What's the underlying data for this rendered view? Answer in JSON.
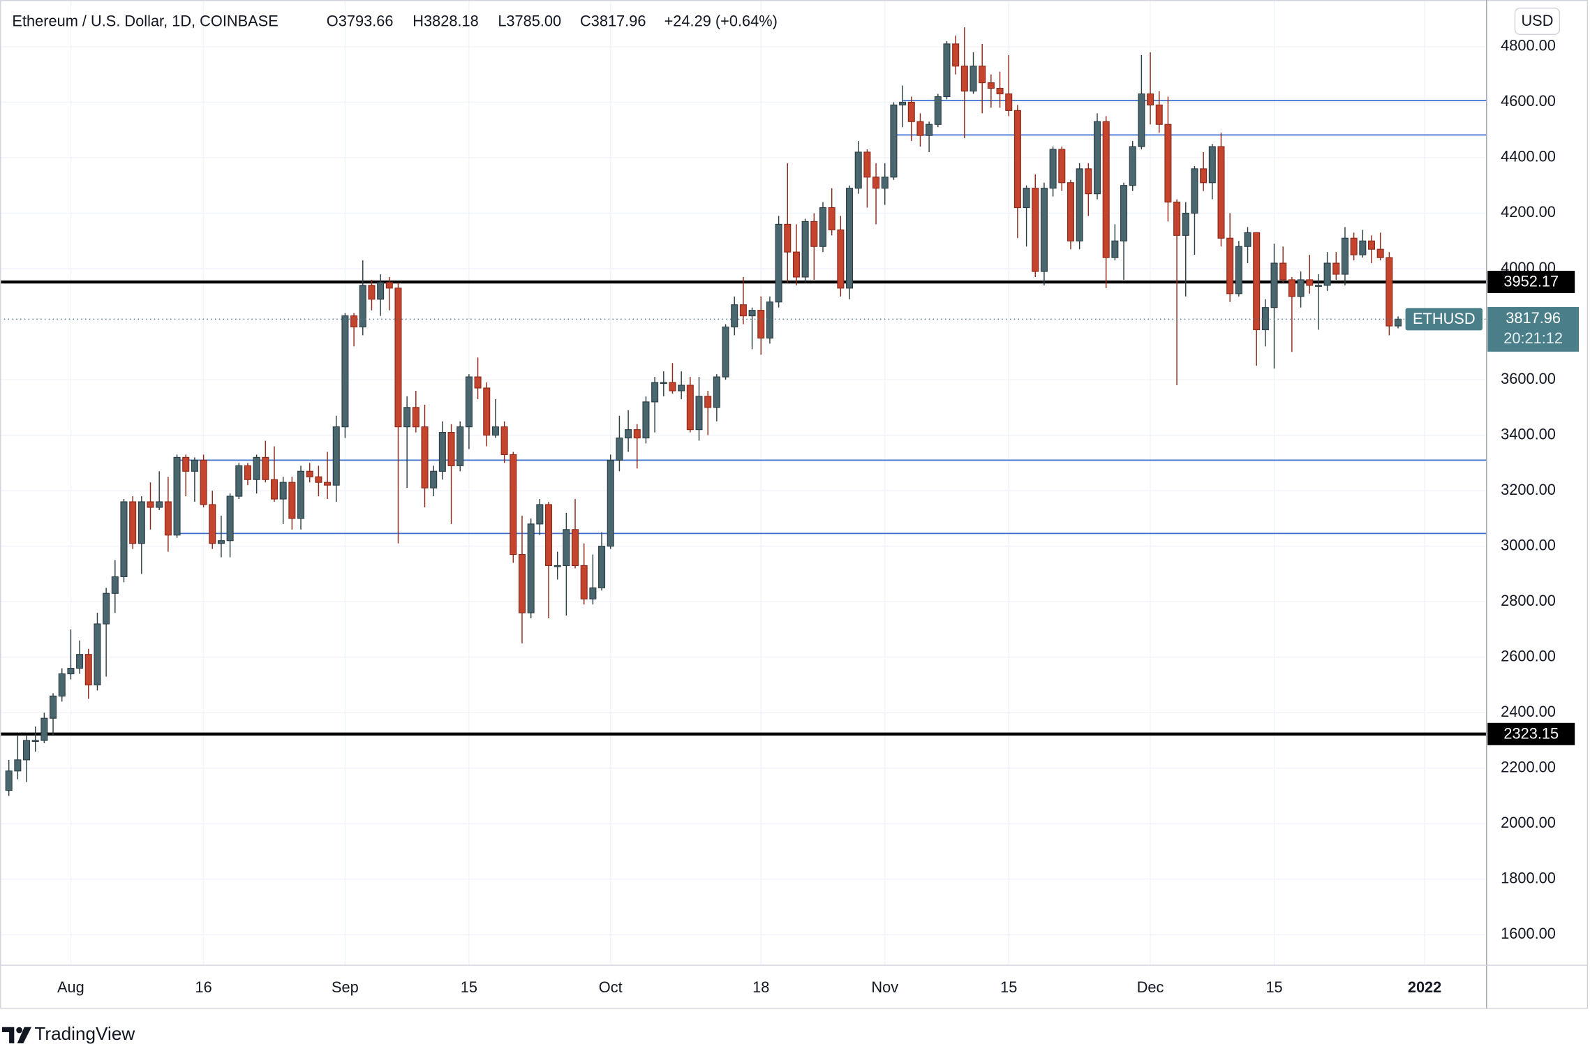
{
  "chart_data": {
    "type": "candlestick",
    "title": "Ethereum / U.S. Dollar, 1D, COINBASE",
    "header_labels": {
      "open": "O3793.66",
      "high": "H3828.18",
      "low": "L3785.00",
      "close": "C3817.96",
      "change": "+24.29 (+0.64%)"
    },
    "currency": "USD",
    "symbol": "ETHUSD",
    "countdown": "20:21:12",
    "brand": "TradingView",
    "up_color": "#4a6770",
    "down_color": "#c4442e",
    "grid": true,
    "ylim": [
      1490,
      4939
    ],
    "yticks": [
      {
        "value": 1600,
        "label": "1600.00"
      },
      {
        "value": 1800,
        "label": "1800.00"
      },
      {
        "value": 2000,
        "label": "2000.00"
      },
      {
        "value": 2200,
        "label": "2200.00"
      },
      {
        "value": 2400,
        "label": "2400.00"
      },
      {
        "value": 2600,
        "label": "2600.00"
      },
      {
        "value": 2800,
        "label": "2800.00"
      },
      {
        "value": 3000,
        "label": "3000.00"
      },
      {
        "value": 3200,
        "label": "3200.00"
      },
      {
        "value": 3400,
        "label": "3400.00"
      },
      {
        "value": 3600,
        "label": "3600.00"
      },
      {
        "value": 4000,
        "label": "4000.00"
      },
      {
        "value": 4200,
        "label": "4200.00"
      },
      {
        "value": 4400,
        "label": "4400.00"
      },
      {
        "value": 4600,
        "label": "4600.00"
      },
      {
        "value": 4800,
        "label": "4800.00"
      }
    ],
    "xlim": [
      "2021-07-24",
      "2022-01-08"
    ],
    "xticks": [
      {
        "value": "2021-08-01",
        "label": "Aug"
      },
      {
        "value": "2021-08-16",
        "label": "16"
      },
      {
        "value": "2021-09-01",
        "label": "Sep"
      },
      {
        "value": "2021-09-15",
        "label": "15"
      },
      {
        "value": "2021-10-01",
        "label": "Oct"
      },
      {
        "value": "2021-10-18",
        "label": "18"
      },
      {
        "value": "2021-11-01",
        "label": "Nov"
      },
      {
        "value": "2021-11-15",
        "label": "15"
      },
      {
        "value": "2021-12-01",
        "label": "Dec"
      },
      {
        "value": "2021-12-15",
        "label": "15"
      },
      {
        "value": "2022-01-01",
        "label": "2022"
      }
    ],
    "levels": [
      {
        "value": 3952.17,
        "color": "#000000"
      },
      {
        "value": 2323.15,
        "color": "#000000"
      }
    ],
    "lines": [
      {
        "value": 4606,
        "start": "2021-11-03",
        "color": "#3d6fd1"
      },
      {
        "value": 4482,
        "start": "2021-11-02",
        "color": "#3d6fd1"
      },
      {
        "value": 3310,
        "start": "2021-08-13",
        "color": "#3d6fd1"
      },
      {
        "value": 3046,
        "start": "2021-08-13",
        "color": "#3d6fd1"
      }
    ],
    "x": [
      "2021-07-25",
      "2021-07-26",
      "2021-07-27",
      "2021-07-28",
      "2021-07-29",
      "2021-07-30",
      "2021-07-31",
      "2021-08-01",
      "2021-08-02",
      "2021-08-03",
      "2021-08-04",
      "2021-08-05",
      "2021-08-06",
      "2021-08-07",
      "2021-08-08",
      "2021-08-09",
      "2021-08-10",
      "2021-08-11",
      "2021-08-12",
      "2021-08-13",
      "2021-08-14",
      "2021-08-15",
      "2021-08-16",
      "2021-08-17",
      "2021-08-18",
      "2021-08-19",
      "2021-08-20",
      "2021-08-21",
      "2021-08-22",
      "2021-08-23",
      "2021-08-24",
      "2021-08-25",
      "2021-08-26",
      "2021-08-27",
      "2021-08-28",
      "2021-08-29",
      "2021-08-30",
      "2021-08-31",
      "2021-09-01",
      "2021-09-02",
      "2021-09-03",
      "2021-09-04",
      "2021-09-05",
      "2021-09-06",
      "2021-09-07",
      "2021-09-08",
      "2021-09-09",
      "2021-09-10",
      "2021-09-11",
      "2021-09-12",
      "2021-09-13",
      "2021-09-14",
      "2021-09-15",
      "2021-09-16",
      "2021-09-17",
      "2021-09-18",
      "2021-09-19",
      "2021-09-20",
      "2021-09-21",
      "2021-09-22",
      "2021-09-23",
      "2021-09-24",
      "2021-09-25",
      "2021-09-26",
      "2021-09-27",
      "2021-09-28",
      "2021-09-29",
      "2021-09-30",
      "2021-10-01",
      "2021-10-02",
      "2021-10-03",
      "2021-10-04",
      "2021-10-05",
      "2021-10-06",
      "2021-10-07",
      "2021-10-08",
      "2021-10-09",
      "2021-10-10",
      "2021-10-11",
      "2021-10-12",
      "2021-10-13",
      "2021-10-14",
      "2021-10-15",
      "2021-10-16",
      "2021-10-17",
      "2021-10-18",
      "2021-10-19",
      "2021-10-20",
      "2021-10-21",
      "2021-10-22",
      "2021-10-23",
      "2021-10-24",
      "2021-10-25",
      "2021-10-26",
      "2021-10-27",
      "2021-10-28",
      "2021-10-29",
      "2021-10-30",
      "2021-10-31",
      "2021-11-01",
      "2021-11-02",
      "2021-11-03",
      "2021-11-04",
      "2021-11-05",
      "2021-11-06",
      "2021-11-07",
      "2021-11-08",
      "2021-11-09",
      "2021-11-10",
      "2021-11-11",
      "2021-11-12",
      "2021-11-13",
      "2021-11-14",
      "2021-11-15",
      "2021-11-16",
      "2021-11-17",
      "2021-11-18",
      "2021-11-19",
      "2021-11-20",
      "2021-11-21",
      "2021-11-22",
      "2021-11-23",
      "2021-11-24",
      "2021-11-25",
      "2021-11-26",
      "2021-11-27",
      "2021-11-28",
      "2021-11-29",
      "2021-11-30",
      "2021-12-01",
      "2021-12-02",
      "2021-12-03",
      "2021-12-04",
      "2021-12-05",
      "2021-12-06",
      "2021-12-07",
      "2021-12-08",
      "2021-12-09",
      "2021-12-10",
      "2021-12-11",
      "2021-12-12",
      "2021-12-13",
      "2021-12-14",
      "2021-12-15",
      "2021-12-16",
      "2021-12-17",
      "2021-12-18",
      "2021-12-19",
      "2021-12-20",
      "2021-12-21",
      "2021-12-22",
      "2021-12-23",
      "2021-12-24",
      "2021-12-25",
      "2021-12-26",
      "2021-12-27",
      "2021-12-28",
      "2021-12-29"
    ],
    "open": [
      2120,
      2190,
      2230,
      2300,
      2300,
      2380,
      2460,
      2540,
      2560,
      2610,
      2500,
      2720,
      2830,
      2890,
      3160,
      3010,
      3160,
      3140,
      3160,
      3040,
      3320,
      3270,
      3310,
      3150,
      3010,
      3020,
      3180,
      3290,
      3240,
      3320,
      3240,
      3170,
      3230,
      3100,
      3270,
      3250,
      3230,
      3220,
      3430,
      3830,
      3790,
      3940,
      3890,
      3950,
      3930,
      3430,
      3500,
      3430,
      3210,
      3270,
      3410,
      3290,
      3430,
      3610,
      3570,
      3400,
      3430,
      3330,
      2970,
      2760,
      3080,
      3150,
      2930,
      2930,
      3060,
      2930,
      2810,
      2850,
      3000,
      3310,
      3390,
      3420,
      3390,
      3520,
      3590,
      3590,
      3560,
      3580,
      3420,
      3540,
      3500,
      3610,
      3790,
      3870,
      3830,
      3850,
      3750,
      3880,
      4160,
      4060,
      3970,
      4170,
      4080,
      4220,
      4140,
      3930,
      4290,
      4420,
      4330,
      4290,
      4330,
      4590,
      4600,
      4530,
      4480,
      4520,
      4620,
      4810,
      4730,
      4640,
      4730,
      4670,
      4650,
      4630,
      4570,
      4220,
      4290,
      3990,
      4290,
      4430,
      4310,
      4100,
      4360,
      4270,
      4530,
      4040,
      4100,
      4300,
      4440,
      4630,
      4590,
      4520,
      4240,
      4120,
      4200,
      4360,
      4310,
      4440,
      4110,
      3910,
      4080,
      4130,
      3780,
      3860,
      4020,
      3960,
      3900,
      3960,
      3940,
      3940,
      4020,
      3980,
      4110,
      4050,
      4100,
      4070,
      4040,
      3793.66
    ],
    "high": [
      2230,
      2320,
      2320,
      2350,
      2400,
      2470,
      2560,
      2700,
      2660,
      2630,
      2760,
      2850,
      2950,
      3170,
      3180,
      3180,
      3230,
      3270,
      3250,
      3330,
      3330,
      3320,
      3330,
      3200,
      3110,
      3190,
      3300,
      3300,
      3330,
      3380,
      3360,
      3250,
      3250,
      3290,
      3300,
      3290,
      3340,
      3470,
      3840,
      3840,
      4030,
      3960,
      3980,
      3970,
      3950,
      3540,
      3560,
      3510,
      3290,
      3450,
      3440,
      3450,
      3620,
      3680,
      3590,
      3530,
      3450,
      3340,
      3110,
      3100,
      3170,
      3160,
      2980,
      3120,
      3170,
      3010,
      2970,
      3050,
      3330,
      3470,
      3490,
      3440,
      3540,
      3610,
      3630,
      3660,
      3630,
      3610,
      3610,
      3560,
      3620,
      3800,
      3900,
      3970,
      3860,
      3900,
      3900,
      4190,
      4380,
      4160,
      4180,
      4200,
      4240,
      4290,
      4190,
      4300,
      4460,
      4430,
      4380,
      4380,
      4600,
      4660,
      4620,
      4560,
      4530,
      4630,
      4820,
      4840,
      4870,
      4780,
      4810,
      4700,
      4710,
      4770,
      4590,
      4300,
      4340,
      4310,
      4440,
      4440,
      4320,
      4380,
      4380,
      4560,
      4550,
      4160,
      4310,
      4460,
      4770,
      4780,
      4640,
      4620,
      4250,
      4240,
      4370,
      4420,
      4450,
      4490,
      4200,
      4100,
      4150,
      4130,
      3890,
      4090,
      4080,
      3970,
      3990,
      4050,
      3980,
      4060,
      4060,
      4150,
      4130,
      4140,
      4120,
      4130,
      4060,
      3828.18
    ],
    "low": [
      2100,
      2160,
      2150,
      2260,
      2290,
      2320,
      2440,
      2520,
      2540,
      2450,
      2480,
      2530,
      2760,
      2870,
      2990,
      2900,
      3060,
      3130,
      2980,
      3030,
      3180,
      3160,
      3140,
      2990,
      2960,
      2960,
      3170,
      3220,
      3190,
      3230,
      3160,
      3080,
      3060,
      3060,
      3230,
      3180,
      3170,
      3160,
      3390,
      3720,
      3760,
      3850,
      3830,
      3850,
      3010,
      3210,
      3410,
      3140,
      3180,
      3240,
      3080,
      3270,
      3350,
      3530,
      3360,
      3390,
      3300,
      2940,
      2650,
      2740,
      3040,
      2740,
      2880,
      2750,
      2920,
      2790,
      2790,
      2840,
      2990,
      3270,
      3340,
      3280,
      3370,
      3410,
      3540,
      3550,
      3530,
      3410,
      3380,
      3400,
      3450,
      3600,
      3760,
      3800,
      3710,
      3690,
      3730,
      3860,
      3950,
      3940,
      3950,
      3960,
      4060,
      4120,
      3900,
      3890,
      4270,
      4220,
      4160,
      4230,
      4320,
      4510,
      4460,
      4440,
      4420,
      4510,
      4610,
      4700,
      4470,
      4630,
      4560,
      4580,
      4580,
      4550,
      4110,
      4080,
      3970,
      3940,
      4260,
      4280,
      4070,
      4070,
      4190,
      4250,
      3930,
      4030,
      3960,
      4280,
      4430,
      4520,
      4490,
      4170,
      3580,
      3900,
      4050,
      4280,
      4250,
      4080,
      3880,
      3900,
      4020,
      3650,
      3720,
      3640,
      3950,
      3700,
      3860,
      3910,
      3780,
      3920,
      3960,
      3940,
      4030,
      4040,
      4020,
      4030,
      3760,
      3785
    ],
    "close": [
      2190,
      2230,
      2300,
      2300,
      2380,
      2460,
      2540,
      2560,
      2610,
      2500,
      2720,
      2830,
      2890,
      3160,
      3010,
      3160,
      3140,
      3160,
      3040,
      3320,
      3270,
      3310,
      3150,
      3010,
      3020,
      3180,
      3290,
      3240,
      3320,
      3240,
      3170,
      3230,
      3100,
      3270,
      3250,
      3230,
      3220,
      3430,
      3830,
      3790,
      3940,
      3890,
      3950,
      3930,
      3430,
      3500,
      3430,
      3210,
      3270,
      3410,
      3290,
      3430,
      3610,
      3570,
      3400,
      3430,
      3330,
      2970,
      2760,
      3080,
      3150,
      2930,
      2930,
      3060,
      2930,
      2810,
      2850,
      3000,
      3310,
      3390,
      3420,
      3390,
      3520,
      3590,
      3590,
      3560,
      3580,
      3420,
      3540,
      3500,
      3610,
      3790,
      3870,
      3830,
      3850,
      3750,
      3880,
      4160,
      4060,
      3970,
      4170,
      4080,
      4220,
      4140,
      3930,
      4290,
      4420,
      4330,
      4290,
      4330,
      4590,
      4600,
      4530,
      4480,
      4520,
      4620,
      4810,
      4730,
      4640,
      4730,
      4670,
      4650,
      4630,
      4570,
      4220,
      4290,
      3990,
      4290,
      4430,
      4310,
      4100,
      4360,
      4270,
      4530,
      4040,
      4100,
      4300,
      4440,
      4630,
      4590,
      4520,
      4240,
      4120,
      4200,
      4360,
      4310,
      4440,
      4110,
      3910,
      4080,
      4130,
      3780,
      3860,
      4020,
      3960,
      3900,
      3960,
      3940,
      3940,
      4020,
      3980,
      4110,
      4050,
      4100,
      4070,
      4040,
      3793.66,
      3817.96
    ]
  }
}
